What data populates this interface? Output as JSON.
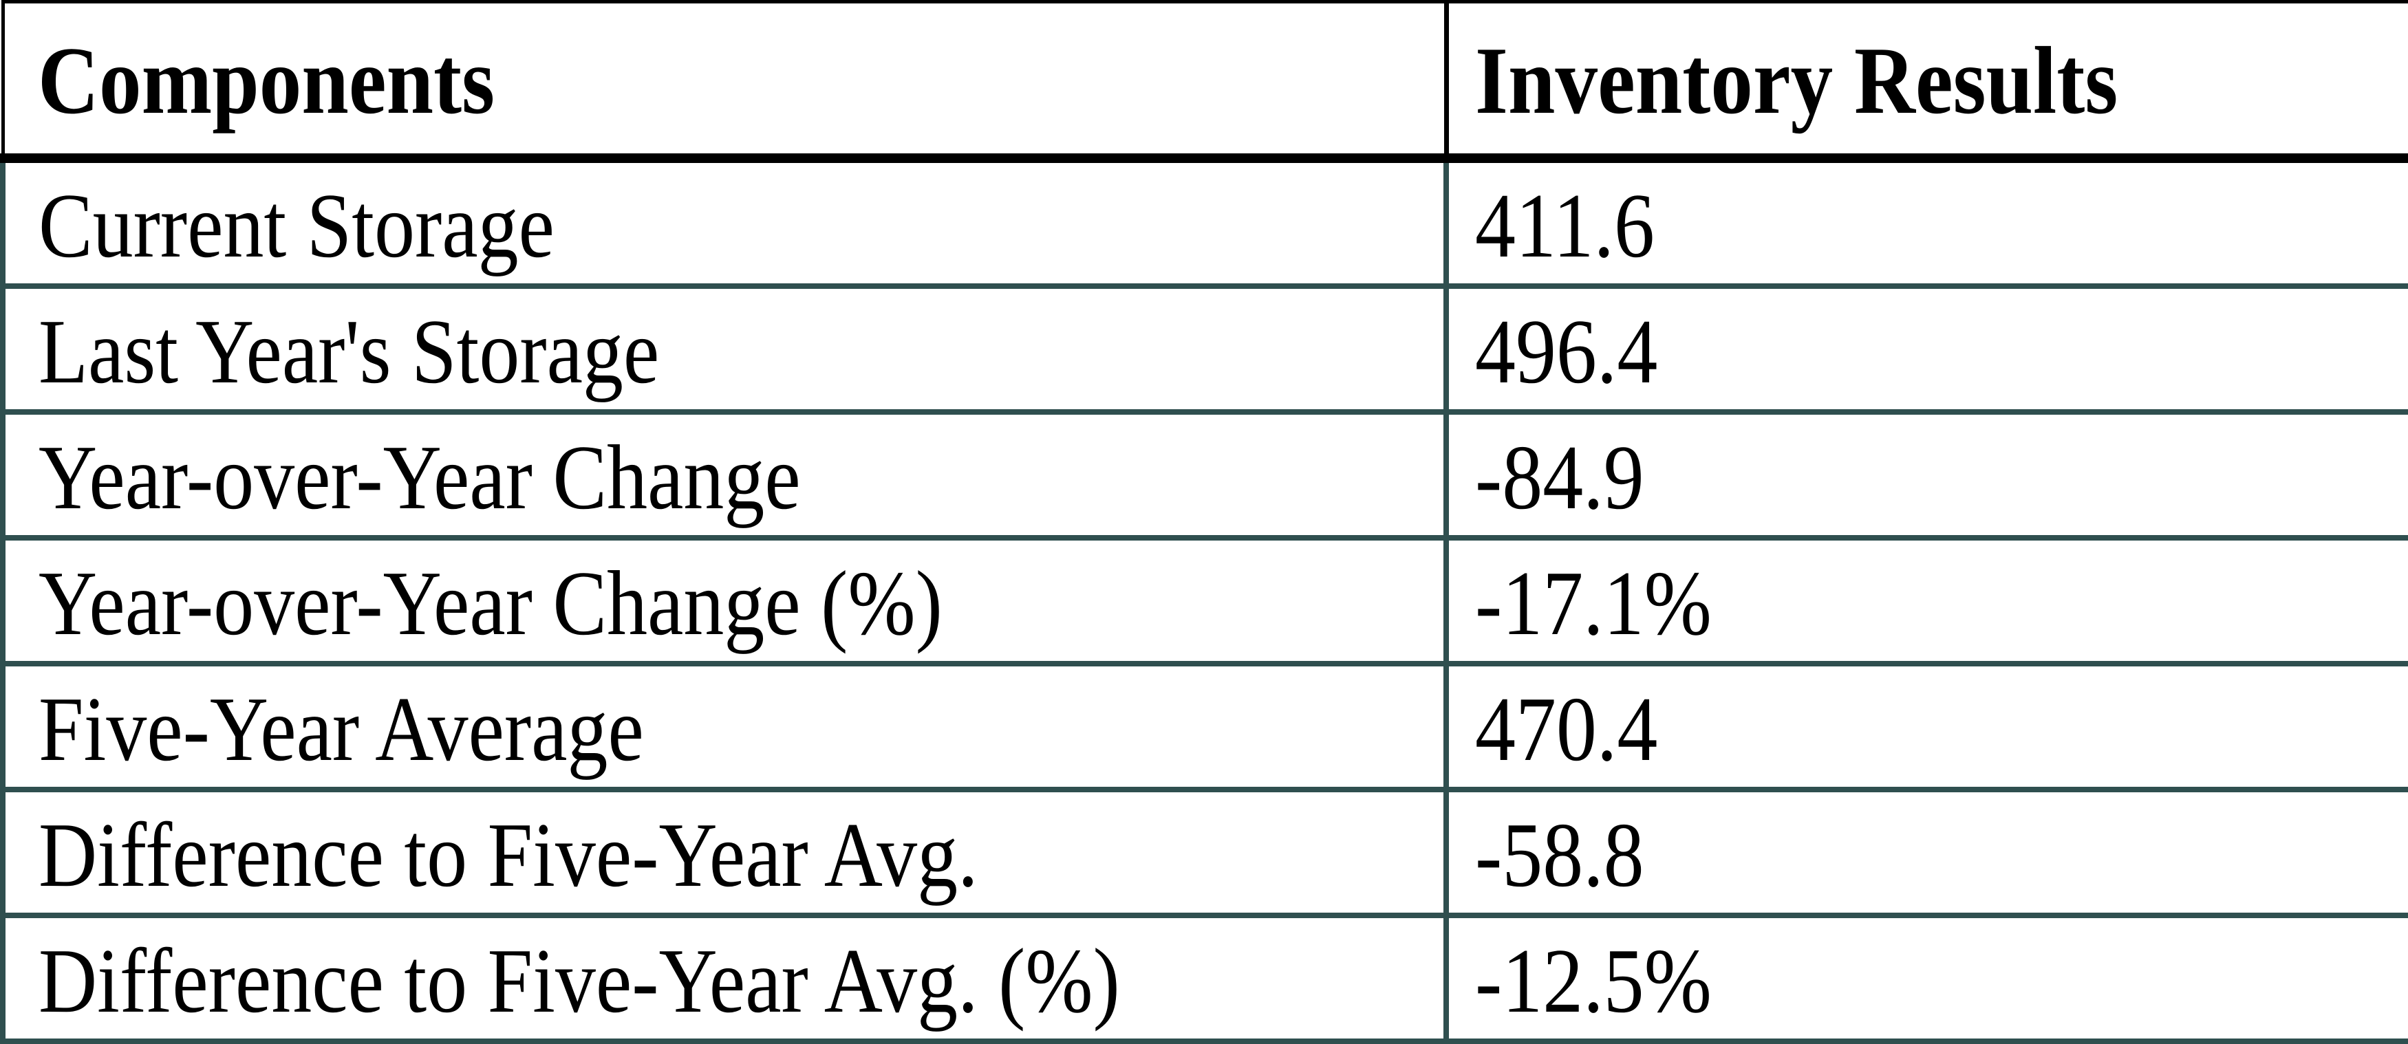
{
  "chart_data": {
    "type": "table",
    "title": "",
    "columns": [
      "Components",
      "Inventory Results"
    ],
    "rows": [
      [
        "Current Storage",
        "411.6"
      ],
      [
        "Last Year's Storage",
        "496.4"
      ],
      [
        "Year-over-Year Change",
        "-84.9"
      ],
      [
        "Year-over-Year Change (%)",
        "-17.1%"
      ],
      [
        "Five-Year Average",
        "470.4"
      ],
      [
        "Difference to Five-Year Avg.",
        "-58.8"
      ],
      [
        "Difference to Five-Year Avg. (%)",
        "-12.5%"
      ]
    ],
    "layout": {
      "header_bold": true,
      "grid": true,
      "legend_position": "none"
    }
  },
  "colors": {
    "header_border": "#000000",
    "body_border": "#2F4F4F",
    "text": "#000000",
    "background": "#FFFFFF"
  }
}
